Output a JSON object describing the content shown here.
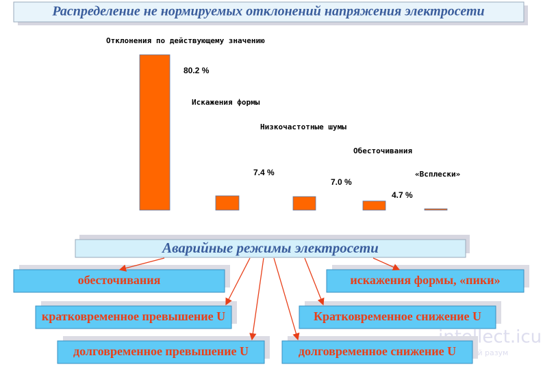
{
  "title": "Распределение не нормируемых отклонений напряжения электросети",
  "chart_data": {
    "type": "bar",
    "categories": [
      "Отклонения по действующему значению",
      "Искажения формы",
      "Низкочастотные шумы",
      "Обесточивания",
      "«Всплески»"
    ],
    "values": [
      80.2,
      7.4,
      7.0,
      4.7,
      0.7
    ],
    "value_labels": [
      "80.2 %",
      "7.4 %",
      "7.0 %",
      "4.7 %",
      null
    ],
    "color": "#ff6600"
  },
  "diagram": {
    "header": "Аварийные режимы электросети",
    "nodes": [
      {
        "label": "обесточивания"
      },
      {
        "label": "кратковременное превышение U"
      },
      {
        "label": "долговременное превышение U"
      },
      {
        "label": "искажения формы, «пики»"
      },
      {
        "label": "Кратковременное снижение U"
      },
      {
        "label": "долговременное снижение U"
      }
    ]
  },
  "watermark": [
    "intellect.icu",
    "ценный разум"
  ]
}
